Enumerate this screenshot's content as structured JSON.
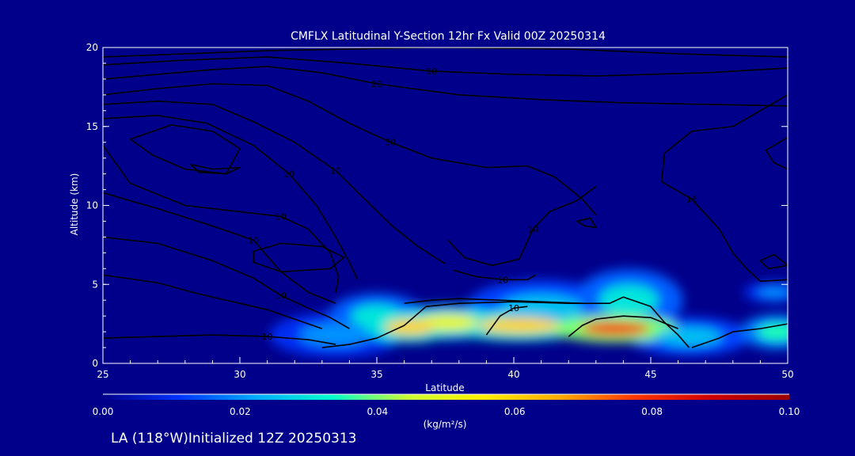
{
  "chart_data": {
    "type": "heatmap",
    "title": "CMFLX Latitudinal Y-Section 12hr  Fx Valid 00Z 20250314",
    "xlabel": "Latitude",
    "ylabel": "Altitude (km)",
    "xlim": [
      25,
      50
    ],
    "ylim": [
      0,
      20
    ],
    "x_ticks": [
      "25",
      "30",
      "35",
      "40",
      "45",
      "50"
    ],
    "y_ticks": [
      "0",
      "5",
      "10",
      "15",
      "20"
    ],
    "colorbar": {
      "unit": "(kg/m²/s)",
      "min": 0.0,
      "max": 0.1,
      "ticks": [
        "0.00",
        "0.02",
        "0.04",
        "0.06",
        "0.08",
        "0.10"
      ],
      "colors": [
        "#00008b",
        "#0033ff",
        "#00aaff",
        "#00ffcc",
        "#ccff33",
        "#ffee00",
        "#ffaa00",
        "#ff3300",
        "#cc0000",
        "#990000"
      ]
    },
    "field_blobs": [
      {
        "lat": 33.5,
        "alt": 1.8,
        "dlat": 2.2,
        "dalt": 1.3,
        "value": 0.02
      },
      {
        "lat": 35.0,
        "alt": 3.0,
        "dlat": 1.6,
        "dalt": 1.3,
        "value": 0.03
      },
      {
        "lat": 36.2,
        "alt": 2.3,
        "dlat": 1.5,
        "dalt": 0.9,
        "value": 0.06
      },
      {
        "lat": 37.6,
        "alt": 2.6,
        "dlat": 1.8,
        "dalt": 1.0,
        "value": 0.05
      },
      {
        "lat": 40.2,
        "alt": 2.4,
        "dlat": 2.5,
        "dalt": 0.9,
        "value": 0.06
      },
      {
        "lat": 41.0,
        "alt": 3.5,
        "dlat": 2.5,
        "dalt": 1.6,
        "value": 0.025
      },
      {
        "lat": 43.7,
        "alt": 2.2,
        "dlat": 2.1,
        "dalt": 0.8,
        "value": 0.08
      },
      {
        "lat": 44.2,
        "alt": 4.0,
        "dlat": 1.8,
        "dalt": 1.8,
        "value": 0.03
      },
      {
        "lat": 46.4,
        "alt": 1.7,
        "dlat": 2.0,
        "dalt": 1.1,
        "value": 0.025
      },
      {
        "lat": 49.6,
        "alt": 2.0,
        "dlat": 1.2,
        "dalt": 1.0,
        "value": 0.035
      },
      {
        "lat": 49.5,
        "alt": 4.5,
        "dlat": 1.0,
        "dalt": 0.6,
        "value": 0.02
      }
    ],
    "contours": [
      {
        "label": "",
        "points": [
          [
            25,
            19.4
          ],
          [
            28,
            19.6
          ],
          [
            31,
            19.8
          ],
          [
            34,
            19.9
          ],
          [
            37,
            20
          ],
          [
            42,
            19.9
          ],
          [
            46,
            19.6
          ],
          [
            50,
            19.4
          ]
        ]
      },
      {
        "label": "10",
        "points": [
          [
            25,
            18.9
          ],
          [
            28,
            19.2
          ],
          [
            31,
            19.4
          ],
          [
            34,
            19.0
          ],
          [
            37,
            18.5
          ],
          [
            40,
            18.3
          ],
          [
            43,
            18.2
          ],
          [
            47,
            18.4
          ],
          [
            50,
            18.7
          ]
        ]
      },
      {
        "label": "20",
        "points": [
          [
            25,
            18.0
          ],
          [
            27,
            18.3
          ],
          [
            29,
            18.6
          ],
          [
            31,
            18.8
          ],
          [
            33,
            18.4
          ],
          [
            35,
            17.7
          ],
          [
            38,
            17.0
          ],
          [
            41,
            16.7
          ],
          [
            44,
            16.5
          ],
          [
            47,
            16.4
          ],
          [
            50,
            16.3
          ]
        ]
      },
      {
        "label": "30",
        "points": [
          [
            25,
            17.0
          ],
          [
            27,
            17.4
          ],
          [
            29,
            17.7
          ],
          [
            31,
            17.6
          ],
          [
            32.5,
            16.6
          ],
          [
            34,
            15.2
          ],
          [
            35.5,
            14.0
          ],
          [
            37,
            13.0
          ],
          [
            39,
            12.4
          ],
          [
            40.5,
            12.5
          ],
          [
            41.5,
            11.8
          ],
          [
            42.5,
            10.4
          ],
          [
            43,
            9.4
          ]
        ]
      },
      {
        "label": "10",
        "points": [
          [
            25,
            16.4
          ],
          [
            27,
            16.6
          ],
          [
            29,
            16.4
          ],
          [
            30.5,
            15.3
          ],
          [
            32,
            14.0
          ],
          [
            33.5,
            12.2
          ],
          [
            34.5,
            10.5
          ],
          [
            35.5,
            8.8
          ],
          [
            36.5,
            7.4
          ],
          [
            37.5,
            6.3
          ]
        ]
      },
      {
        "label": "10",
        "points": [
          [
            25,
            15.5
          ],
          [
            27,
            15.7
          ],
          [
            28.8,
            15.2
          ],
          [
            30.5,
            13.8
          ],
          [
            31.8,
            12.0
          ],
          [
            32.8,
            10.0
          ],
          [
            33.5,
            8.0
          ],
          [
            34,
            6.4
          ],
          [
            34.3,
            5.3
          ]
        ]
      },
      {
        "label": "",
        "points": [
          [
            26,
            14.2
          ],
          [
            27.5,
            15.1
          ],
          [
            29,
            14.7
          ],
          [
            30,
            13.6
          ],
          [
            29.5,
            12.0
          ],
          [
            28,
            12.3
          ],
          [
            26.8,
            13.2
          ],
          [
            26,
            14.2
          ]
        ]
      },
      {
        "label": "",
        "points": [
          [
            28.2,
            12.6
          ],
          [
            29,
            12.3
          ],
          [
            30,
            12.4
          ],
          [
            29.5,
            12.0
          ],
          [
            28.5,
            12.1
          ],
          [
            28.2,
            12.6
          ]
        ]
      },
      {
        "label": "10",
        "points": [
          [
            25,
            13.8
          ],
          [
            26,
            11.4
          ],
          [
            28,
            10.0
          ],
          [
            30,
            9.6
          ],
          [
            31.5,
            9.3
          ],
          [
            32.5,
            8.5
          ],
          [
            33.3,
            7.0
          ],
          [
            33.6,
            5.5
          ],
          [
            33.5,
            4.5
          ]
        ]
      },
      {
        "label": "",
        "points": [
          [
            30.5,
            7.1
          ],
          [
            31.5,
            7.6
          ],
          [
            33,
            7.4
          ],
          [
            33.8,
            6.7
          ],
          [
            33.3,
            6.0
          ],
          [
            31.5,
            5.8
          ],
          [
            30.5,
            6.4
          ],
          [
            30.5,
            7.1
          ]
        ]
      },
      {
        "label": "10",
        "points": [
          [
            25,
            10.8
          ],
          [
            27,
            9.8
          ],
          [
            29,
            8.7
          ],
          [
            30.5,
            7.8
          ],
          [
            31.5,
            5.8
          ],
          [
            32.5,
            4.5
          ],
          [
            33.5,
            3.8
          ]
        ]
      },
      {
        "label": "10",
        "points": [
          [
            25,
            8.0
          ],
          [
            27,
            7.6
          ],
          [
            29,
            6.5
          ],
          [
            30.5,
            5.4
          ],
          [
            31.5,
            4.3
          ],
          [
            32.5,
            3.5
          ],
          [
            33.3,
            2.9
          ],
          [
            34,
            2.2
          ]
        ]
      },
      {
        "label": "",
        "points": [
          [
            25,
            5.6
          ],
          [
            27,
            5.1
          ],
          [
            28.5,
            4.4
          ],
          [
            30,
            3.8
          ],
          [
            31,
            3.4
          ],
          [
            32,
            2.8
          ],
          [
            33,
            2.2
          ]
        ]
      },
      {
        "label": "10",
        "points": [
          [
            25,
            1.6
          ],
          [
            27,
            1.7
          ],
          [
            29,
            1.8
          ],
          [
            31,
            1.7
          ],
          [
            32.5,
            1.5
          ],
          [
            33.5,
            1.2
          ]
        ]
      },
      {
        "label": "",
        "points": [
          [
            33,
            1.0
          ],
          [
            34,
            1.2
          ],
          [
            35,
            1.6
          ],
          [
            36,
            2.4
          ],
          [
            36.8,
            3.6
          ],
          [
            37.4,
            3.7
          ],
          [
            38,
            3.8
          ],
          [
            40,
            3.9
          ],
          [
            42,
            3.8
          ],
          [
            43.5,
            3.8
          ],
          [
            44,
            4.2
          ],
          [
            45,
            3.6
          ],
          [
            45.5,
            2.6
          ],
          [
            46,
            1.8
          ],
          [
            46.4,
            1.0
          ]
        ]
      },
      {
        "label": "",
        "points": [
          [
            36,
            3.8
          ],
          [
            37,
            4.0
          ],
          [
            38,
            4.1
          ],
          [
            39.5,
            4.0
          ],
          [
            41,
            3.9
          ],
          [
            42.5,
            3.8
          ]
        ]
      },
      {
        "label": "10",
        "points": [
          [
            39,
            1.8
          ],
          [
            39.5,
            3.0
          ],
          [
            40,
            3.5
          ],
          [
            40.5,
            3.6
          ]
        ]
      },
      {
        "label": "",
        "points": [
          [
            42,
            1.7
          ],
          [
            42.5,
            2.4
          ],
          [
            43,
            2.8
          ],
          [
            44,
            3.0
          ],
          [
            45,
            2.9
          ],
          [
            46,
            2.2
          ]
        ]
      },
      {
        "label": "",
        "points": [
          [
            46.5,
            1.0
          ],
          [
            47.5,
            1.6
          ],
          [
            48,
            2.0
          ],
          [
            49,
            2.2
          ],
          [
            50,
            2.5
          ]
        ]
      },
      {
        "label": "10",
        "points": [
          [
            37.6,
            7.8
          ],
          [
            38.2,
            6.7
          ],
          [
            39.2,
            6.2
          ],
          [
            40.2,
            6.6
          ],
          [
            40.7,
            8.5
          ],
          [
            41.3,
            9.6
          ],
          [
            42.3,
            10.3
          ],
          [
            43,
            11.2
          ]
        ]
      },
      {
        "label": "10",
        "points": [
          [
            37.8,
            5.9
          ],
          [
            38.6,
            5.5
          ],
          [
            39.6,
            5.3
          ],
          [
            40.5,
            5.3
          ],
          [
            40.8,
            5.6
          ]
        ]
      },
      {
        "label": "",
        "points": [
          [
            42.3,
            9.0
          ],
          [
            42.8,
            9.2
          ],
          [
            43,
            8.6
          ],
          [
            42.6,
            8.7
          ],
          [
            42.3,
            9.0
          ]
        ]
      },
      {
        "label": "16",
        "points": [
          [
            50,
            17.0
          ],
          [
            48,
            15.0
          ],
          [
            46.5,
            14.7
          ],
          [
            45.5,
            13.3
          ],
          [
            45.4,
            11.5
          ],
          [
            46.5,
            10.4
          ],
          [
            47.5,
            8.5
          ],
          [
            48,
            7.0
          ],
          [
            48.5,
            6.0
          ],
          [
            49,
            5.2
          ],
          [
            50,
            5.3
          ]
        ]
      },
      {
        "label": "",
        "points": [
          [
            49,
            6.5
          ],
          [
            49.5,
            6.9
          ],
          [
            50,
            6.2
          ],
          [
            49.3,
            6.0
          ],
          [
            49,
            6.5
          ]
        ]
      },
      {
        "label": "",
        "points": [
          [
            50,
            14.3
          ],
          [
            49.2,
            13.5
          ],
          [
            49.5,
            12.7
          ],
          [
            50,
            12.3
          ]
        ]
      }
    ]
  },
  "footer": {
    "text": "LA (118°W)Initialized 12Z 20250313"
  }
}
